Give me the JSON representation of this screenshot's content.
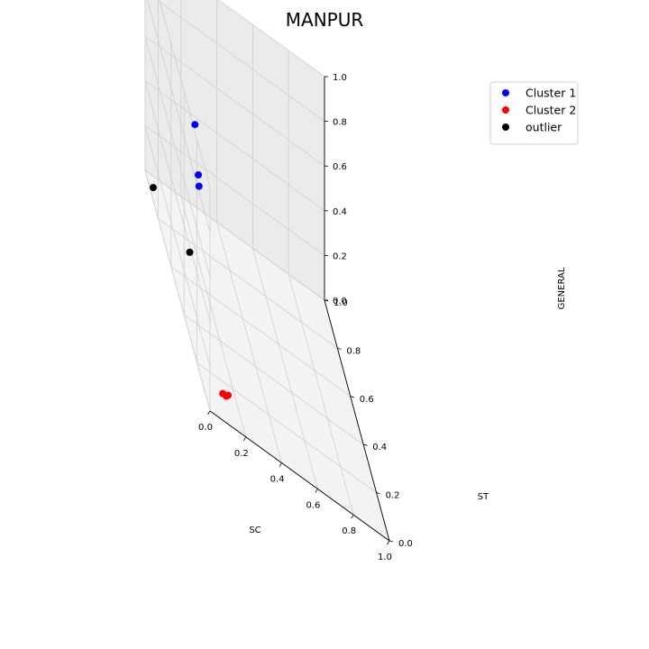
{
  "chart_data": {
    "type": "scatter",
    "projection": "3d",
    "title": "MANPUR",
    "xlabel": "SC",
    "ylabel": "ST",
    "zlabel": "GENERAL",
    "xlim": [
      0,
      1
    ],
    "ylim": [
      0,
      1
    ],
    "zlim": [
      0,
      1
    ],
    "xticks": [
      "0.0",
      "0.2",
      "0.4",
      "0.6",
      "0.8",
      "1.0"
    ],
    "yticks": [
      "0.0",
      "0.2",
      "0.4",
      "0.6",
      "0.8",
      "1.0"
    ],
    "zticks": [
      "0.0",
      "0.2",
      "0.4",
      "0.6",
      "0.8",
      "1.0"
    ],
    "grid": true,
    "legend_position": "top-right",
    "series": [
      {
        "name": "Cluster 1",
        "color": "#0000ff",
        "points": [
          {
            "x": 0.18,
            "y": 0.73,
            "z": 0.6
          },
          {
            "x": 0.21,
            "y": 0.76,
            "z": 0.36
          },
          {
            "x": 0.21,
            "y": 0.75,
            "z": 0.32
          }
        ]
      },
      {
        "name": "Cluster 2",
        "color": "#ff0000",
        "points": [
          {
            "x": 0.1,
            "y": 0.08,
            "z": 0.05
          },
          {
            "x": 0.12,
            "y": 0.08,
            "z": 0.05
          },
          {
            "x": 0.13,
            "y": 0.08,
            "z": 0.06
          }
        ]
      },
      {
        "name": "outlier",
        "color": "#000000",
        "points": [
          {
            "x": 0.01,
            "y": 0.34,
            "z": 0.35
          },
          {
            "x": 0.02,
            "y": 0.93,
            "z": 0.01
          }
        ]
      }
    ]
  }
}
